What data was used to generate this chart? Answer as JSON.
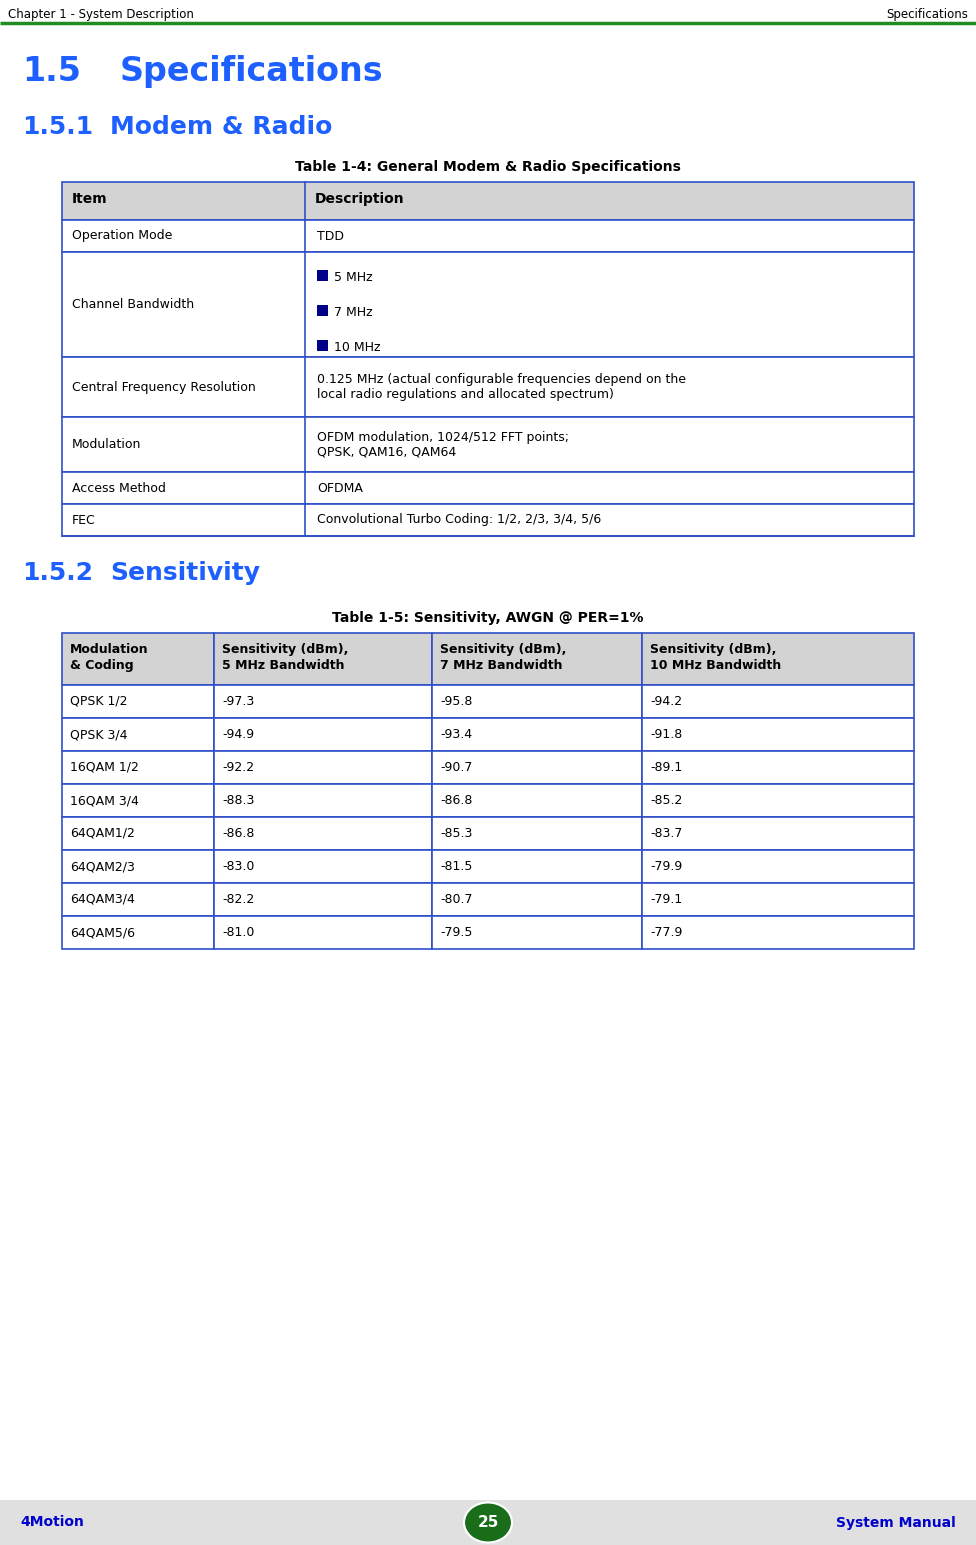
{
  "page_bg": "#ffffff",
  "header_left": "Chapter 1 - System Description",
  "header_right": "Specifications",
  "header_line_color": "#228B22",
  "header_text_color": "#000000",
  "footer_bg": "#e0e0e0",
  "footer_left": "4Motion",
  "footer_center": "25",
  "footer_right": "System Manual",
  "footer_text_color": "#0000cc",
  "footer_circle_color": "#1a6e1a",
  "section_title_1_num": "1.5",
  "section_title_1_text": "Specifications",
  "section_title_2_num": "1.5.1",
  "section_title_2_text": "Modem & Radio",
  "section_title_3_num": "1.5.2",
  "section_title_3_text": "Sensitivity",
  "section_title_color": "#1e5fff",
  "table1_title": "Table 1-4: General Modem & Radio Specifications",
  "table1_header_bg": "#d3d3d3",
  "table1_border_color": "#3050c8",
  "table1_cols": [
    "Item",
    "Description"
  ],
  "bullet_color": "#00008b",
  "section_title_3_text_color": "#1e5fff",
  "table2_title": "Table 1-5: Sensitivity, AWGN @ PER=1%",
  "table2_header_bg": "#d3d3d3",
  "table2_border_color": "#3050c8",
  "table2_cols": [
    "Modulation\n& Coding",
    "Sensitivity (dBm),\n5 MHz Bandwidth",
    "Sensitivity (dBm),\n7 MHz Bandwidth",
    "Sensitivity (dBm),\n10 MHz Bandwidth"
  ],
  "table2_rows": [
    [
      "QPSK 1/2",
      "-97.3",
      "-95.8",
      "-94.2"
    ],
    [
      "QPSK 3/4",
      "-94.9",
      "-93.4",
      "-91.8"
    ],
    [
      "16QAM 1/2",
      "-92.2",
      "-90.7",
      "-89.1"
    ],
    [
      "16QAM 3/4",
      "-88.3",
      "-86.8",
      "-85.2"
    ],
    [
      "64QAM1/2",
      "-86.8",
      "-85.3",
      "-83.7"
    ],
    [
      "64QAM2/3",
      "-83.0",
      "-81.5",
      "-79.9"
    ],
    [
      "64QAM3/4",
      "-82.2",
      "-80.7",
      "-79.1"
    ],
    [
      "64QAM5/6",
      "-81.0",
      "-79.5",
      "-77.9"
    ]
  ]
}
